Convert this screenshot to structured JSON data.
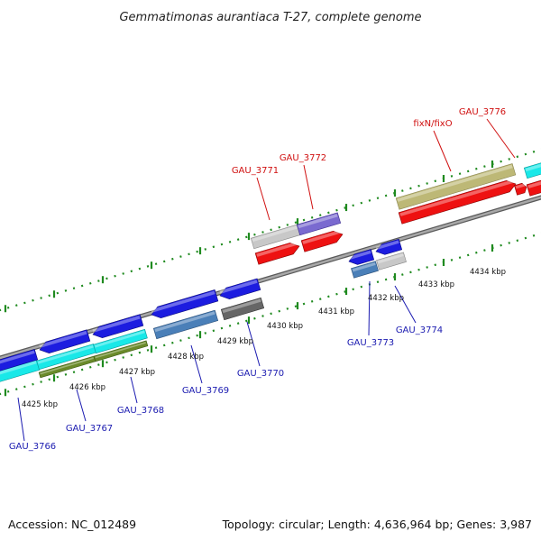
{
  "title": "Gemmatimonas aurantiaca T-27, complete genome",
  "accession_label": "Accession: NC_012489",
  "summary_label": "Topology: circular; Length: 4,636,964 bp; Genes: 3,987",
  "colors": {
    "backbone": "#8a8a8a",
    "ticks": "#1f8a1f",
    "blue_gene": "#1c1ce0",
    "steel_gene": "#4a7fb8",
    "red_gene": "#ee1111",
    "cyan_gene": "#19e8e8",
    "olive_gene": "#6a8a2a",
    "khaki_gene": "#bdb876",
    "grey_gene": "#c8c8c8",
    "dark_grey_gene": "#666666",
    "lavender_gene": "#7a6ad0",
    "label_blue": "#1a1ab0",
    "label_red": "#d01010"
  },
  "ticks": [
    {
      "label": "4425 kbp"
    },
    {
      "label": "4426 kbp"
    },
    {
      "label": "4427 kbp"
    },
    {
      "label": "4428 kbp"
    },
    {
      "label": "4429 kbp"
    },
    {
      "label": "4430 kbp"
    },
    {
      "label": "4431 kbp"
    },
    {
      "label": "4432 kbp"
    },
    {
      "label": "4433 kbp"
    },
    {
      "label": "4434 kbp"
    }
  ],
  "gene_labels": [
    {
      "text": "GAU_3766",
      "color": "blue"
    },
    {
      "text": "GAU_3767",
      "color": "blue"
    },
    {
      "text": "GAU_3768",
      "color": "blue"
    },
    {
      "text": "GAU_3769",
      "color": "blue"
    },
    {
      "text": "GAU_3770",
      "color": "blue"
    },
    {
      "text": "GAU_3773",
      "color": "blue"
    },
    {
      "text": "GAU_3774",
      "color": "blue"
    },
    {
      "text": "GAU_3771",
      "color": "red"
    },
    {
      "text": "GAU_3772",
      "color": "red"
    },
    {
      "text": "fixN/fixO",
      "color": "red"
    },
    {
      "text": "GAU_3776",
      "color": "red"
    }
  ]
}
